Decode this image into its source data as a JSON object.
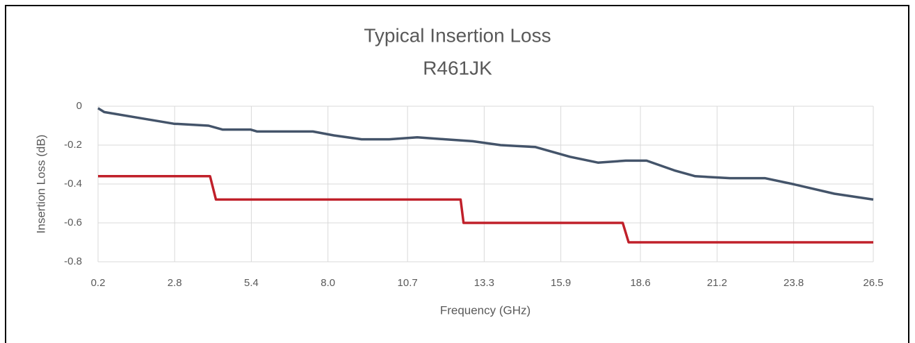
{
  "chart_data": {
    "type": "line",
    "title": "Typical Insertion Loss",
    "subtitle": "R461JK",
    "xlabel": "Frequency (GHz)",
    "ylabel": "Insertion Loss (dB)",
    "xlim": [
      0.2,
      26.5
    ],
    "xticks": [
      0.2,
      2.8,
      5.4,
      {
        "value": 8,
        "label": "8.0"
      },
      10.7,
      13.3,
      15.9,
      18.6,
      21.2,
      23.8,
      26.5
    ],
    "ylim": [
      -0.8,
      0
    ],
    "yticks": [
      0,
      -0.2,
      -0.4,
      -0.6,
      -0.8
    ],
    "grid": true,
    "series": [
      {
        "color": "#44546a",
        "x": [
          0.2,
          0.41,
          1.59,
          2.77,
          3.95,
          4.42,
          5.37,
          5.6,
          7.49,
          8.2,
          9.14,
          10.08,
          11.03,
          11.97,
          12.91,
          13.86,
          15.04,
          16.21,
          17.16,
          18.1,
          18.81,
          19.75,
          20.46,
          21.64,
          22.82,
          23.76,
          25.18,
          26.5
        ],
        "values": [
          -0.01,
          -0.03,
          -0.06,
          -0.09,
          -0.1,
          -0.12,
          -0.12,
          -0.13,
          -0.13,
          -0.15,
          -0.17,
          -0.17,
          -0.16,
          -0.17,
          -0.18,
          -0.2,
          -0.21,
          -0.26,
          -0.29,
          -0.28,
          -0.28,
          -0.33,
          -0.36,
          -0.37,
          -0.37,
          -0.4,
          -0.45,
          -0.48
        ]
      },
      {
        "color": "#c0202a",
        "x": [
          0.2,
          4.0,
          4.2,
          12.5,
          12.6,
          18.0,
          18.2,
          26.5
        ],
        "values": [
          -0.36,
          -0.36,
          -0.48,
          -0.48,
          -0.6,
          -0.6,
          -0.7,
          -0.7
        ]
      }
    ]
  }
}
